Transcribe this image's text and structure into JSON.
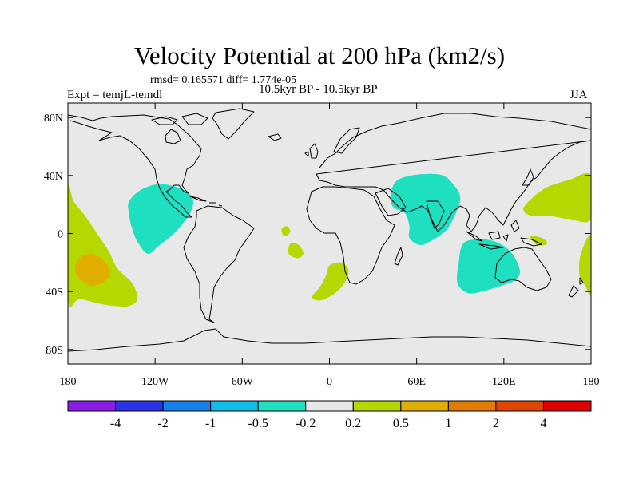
{
  "header": {
    "title": "Velocity Potential at 200 hPa (km2/s)",
    "stats": "rmsd= 0.165571  diff= 1.774e-05",
    "experiment": "Expt = temjL-temdl",
    "period": "10.5kyr BP - 10.5kyr BP",
    "season": "JJA"
  },
  "map": {
    "projection": "cylindrical-equidistant",
    "lon_range": [
      -180,
      180
    ],
    "lat_range": [
      -90,
      90
    ],
    "lat_ticks": [
      {
        "value": 80,
        "label": "80N"
      },
      {
        "value": 40,
        "label": "40N"
      },
      {
        "value": 0,
        "label": "0"
      },
      {
        "value": -40,
        "label": "40S"
      },
      {
        "value": -80,
        "label": "80S"
      }
    ],
    "lon_ticks": [
      {
        "value": -180,
        "label": "180"
      },
      {
        "value": -120,
        "label": "120W"
      },
      {
        "value": -60,
        "label": "60W"
      },
      {
        "value": 0,
        "label": "0"
      },
      {
        "value": 60,
        "label": "60E"
      },
      {
        "value": 120,
        "label": "120E"
      },
      {
        "value": 180,
        "label": "180"
      }
    ],
    "background_color": "#e8e8e8",
    "anomaly_regions": [
      {
        "name": "east-pacific-negative",
        "level": "-0.5..-0.2",
        "color": "#1ee0c0",
        "outline": [
          [
            -138,
            22
          ],
          [
            -130,
            30
          ],
          [
            -118,
            34
          ],
          [
            -105,
            32
          ],
          [
            -95,
            26
          ],
          [
            -95,
            16
          ],
          [
            -105,
            2
          ],
          [
            -118,
            -9
          ],
          [
            -125,
            -14
          ],
          [
            -132,
            -6
          ],
          [
            -136,
            4
          ],
          [
            -138,
            14
          ]
        ]
      },
      {
        "name": "arabia-india-negative",
        "level": "-0.5..-0.2",
        "color": "#1ee0c0",
        "outline": [
          [
            45,
            35
          ],
          [
            52,
            39
          ],
          [
            65,
            41
          ],
          [
            78,
            40
          ],
          [
            86,
            33
          ],
          [
            90,
            24
          ],
          [
            86,
            12
          ],
          [
            80,
            2
          ],
          [
            70,
            -5
          ],
          [
            62,
            -8
          ],
          [
            55,
            -3
          ],
          [
            55,
            5
          ],
          [
            52,
            14
          ],
          [
            44,
            18
          ],
          [
            42,
            26
          ]
        ]
      },
      {
        "name": "indian-ocean-australia-negative",
        "level": "-0.5..-0.2",
        "color": "#1ee0c0",
        "outline": [
          [
            92,
            -7
          ],
          [
            103,
            -4
          ],
          [
            115,
            -6
          ],
          [
            125,
            -13
          ],
          [
            131,
            -25
          ],
          [
            128,
            -32
          ],
          [
            118,
            -36
          ],
          [
            105,
            -40
          ],
          [
            95,
            -41
          ],
          [
            88,
            -34
          ],
          [
            89,
            -20
          ]
        ]
      },
      {
        "name": "south-pacific-positive",
        "level": "0.2..0.5",
        "color": "#b4d800",
        "outline": [
          [
            -180,
            30
          ],
          [
            -176,
            22
          ],
          [
            -168,
            12
          ],
          [
            -160,
            0
          ],
          [
            -152,
            -12
          ],
          [
            -146,
            -24
          ],
          [
            -136,
            -34
          ],
          [
            -132,
            -45
          ],
          [
            -138,
            -50
          ],
          [
            -148,
            -50
          ],
          [
            -160,
            -48
          ],
          [
            -172,
            -45
          ],
          [
            -180,
            -45
          ]
        ]
      },
      {
        "name": "south-pacific-positive-core",
        "level": "0.5..1",
        "color": "#e0ae00",
        "outline": [
          [
            -172,
            -17
          ],
          [
            -164,
            -14
          ],
          [
            -156,
            -18
          ],
          [
            -151,
            -26
          ],
          [
            -155,
            -33
          ],
          [
            -164,
            -36
          ],
          [
            -172,
            -31
          ],
          [
            -175,
            -24
          ]
        ]
      },
      {
        "name": "south-atlantic-positive",
        "level": "0.2..0.5",
        "color": "#b4d800",
        "outline": [
          [
            0,
            -22
          ],
          [
            8,
            -20
          ],
          [
            13,
            -25
          ],
          [
            11,
            -33
          ],
          [
            4,
            -41
          ],
          [
            -6,
            -46
          ],
          [
            -12,
            -44
          ],
          [
            -6,
            -36
          ],
          [
            -2,
            -28
          ]
        ]
      },
      {
        "name": "atlantic-small-a",
        "level": "0.2..0.5",
        "color": "#b4d800",
        "outline": [
          [
            -33,
            3
          ],
          [
            -29,
            5
          ],
          [
            -27,
            1
          ],
          [
            -31,
            -2
          ]
        ]
      },
      {
        "name": "atlantic-small-b",
        "level": "0.2..0.5",
        "color": "#b4d800",
        "outline": [
          [
            -27,
            -7
          ],
          [
            -21,
            -8
          ],
          [
            -18,
            -14
          ],
          [
            -22,
            -17
          ],
          [
            -28,
            -14
          ]
        ]
      },
      {
        "name": "north-pacific-positive",
        "level": "0.2..0.5",
        "color": "#b4d800",
        "outline": [
          [
            135,
            20
          ],
          [
            148,
            31
          ],
          [
            165,
            37
          ],
          [
            180,
            40
          ],
          [
            180,
            10
          ],
          [
            165,
            10
          ],
          [
            152,
            12
          ],
          [
            140,
            12
          ],
          [
            134,
            15
          ]
        ]
      },
      {
        "name": "east-pacific-edge-positive",
        "level": "0.2..0.5",
        "color": "#b4d800",
        "outline": [
          [
            180,
            -2
          ],
          [
            173,
            -14
          ],
          [
            172,
            -28
          ],
          [
            176,
            -36
          ],
          [
            180,
            -40
          ]
        ]
      },
      {
        "name": "maritime-small-positive",
        "level": "0.2..0.5",
        "color": "#b4d800",
        "outline": [
          [
            138,
            -2
          ],
          [
            146,
            -3
          ],
          [
            150,
            -7
          ],
          [
            143,
            -8
          ]
        ]
      }
    ]
  },
  "colorbar": {
    "colors": [
      "#8a1ee8",
      "#2c32e8",
      "#1680e8",
      "#10bce8",
      "#1ee0c0",
      "#e8e8e8",
      "#b4d800",
      "#e0ae00",
      "#e27c00",
      "#e04600",
      "#e00000"
    ],
    "labels": [
      "-4",
      "-2",
      "-1",
      "-0.5",
      "-0.2",
      "0.2",
      "0.5",
      "1",
      "2",
      "4"
    ]
  }
}
